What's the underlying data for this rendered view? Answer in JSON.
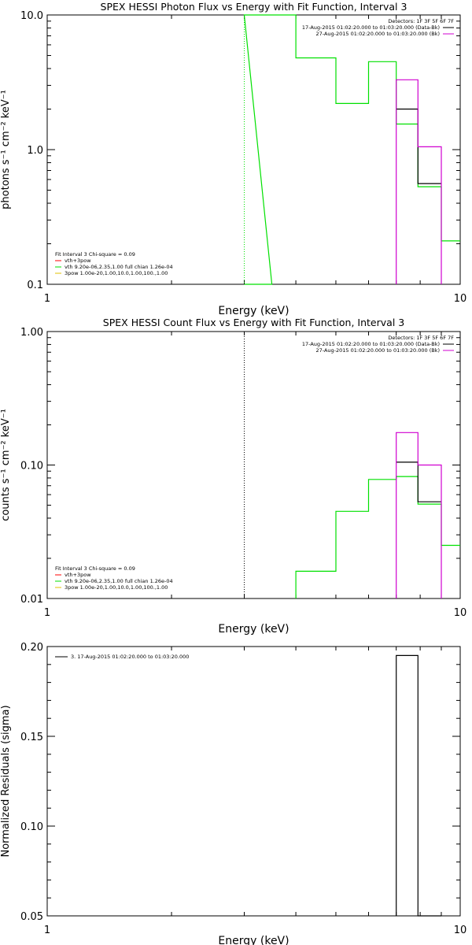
{
  "colors": {
    "green": "#00e000",
    "magenta": "#d000d0",
    "black": "#000000",
    "red": "#ff0000",
    "yellow": "#e0c000"
  },
  "chart_data": [
    {
      "type": "line",
      "title": "SPEX HESSI Photon Flux vs Energy with Fit Function, Interval 3",
      "xlabel": "Energy (keV)",
      "ylabel": "photons s⁻¹ cm⁻² keV⁻¹",
      "xscale": "log",
      "yscale": "log",
      "xlim": [
        1,
        10
      ],
      "ylim": [
        0.1,
        10.0
      ],
      "xticks": [
        1,
        10
      ],
      "xtick_labels": [
        "1",
        "10"
      ],
      "yticks": [
        0.1,
        1.0,
        10.0
      ],
      "ytick_labels": [
        "0.1",
        "1.0",
        "10.0"
      ],
      "detectors": "Detectors: 1F 3F 5F 6F 7F",
      "legend_top": [
        {
          "text": "17-Aug-2015 01:02:20.000 to 01:03:20.000 (Data-Bk)",
          "color": "#000000"
        },
        {
          "text": "27-Aug-2015 01:02:20.000 to 01:03:20.000 (Bk)",
          "color": "#d000d0"
        }
      ],
      "fit_info": [
        {
          "text": "Fit Interval 3   Chi-square = 0.09",
          "color": ""
        },
        {
          "text": "vth+3pow",
          "color": "#ff0000"
        },
        {
          "text": "vth 9.20e-06,2.35,1.00  full chian 1.26e-04",
          "color": "#00e000"
        },
        {
          "text": "3pow 1.00e-20,1.00,10.0,1.00,100.,1.00",
          "color": "#e0c000"
        }
      ],
      "series": [
        {
          "color": "#00e000",
          "steps": [
            [
              3.0,
              3.5,
              0.1
            ],
            [
              3.0,
              3.5,
              10.0
            ],
            [
              3.5,
              4.0,
              10.0
            ],
            [
              4.0,
              5.0,
              4.8
            ],
            [
              5.0,
              6.0,
              2.2
            ],
            [
              6.0,
              7.0,
              4.5
            ],
            [
              7.0,
              7.9,
              1.55
            ],
            [
              7.9,
              9.0,
              0.53
            ],
            [
              9.0,
              10.2,
              0.21
            ]
          ],
          "start_from_bottom": true
        },
        {
          "color": "#000000",
          "steps": [
            [
              7.0,
              7.9,
              2.0
            ],
            [
              7.9,
              9.0,
              0.56
            ]
          ]
        },
        {
          "color": "#d000d0",
          "steps": [
            [
              7.0,
              7.9,
              3.3
            ],
            [
              7.9,
              9.0,
              1.05
            ]
          ],
          "start_from_bottom": true
        }
      ],
      "vline": {
        "x": 3.0,
        "style": "dotted",
        "color": "#00e000"
      }
    },
    {
      "type": "line",
      "title": "SPEX HESSI Count Flux vs Energy with Fit Function, Interval 3",
      "xlabel": "Energy (keV)",
      "ylabel": "counts s⁻¹ cm⁻² keV⁻¹",
      "xscale": "log",
      "yscale": "log",
      "xlim": [
        1,
        10
      ],
      "ylim": [
        0.01,
        1.0
      ],
      "xticks": [
        1,
        10
      ],
      "xtick_labels": [
        "1",
        "10"
      ],
      "yticks": [
        0.01,
        0.1,
        1.0
      ],
      "ytick_labels": [
        "0.01",
        "0.10",
        "1.00"
      ],
      "detectors": "Detectors: 1F 3F 5F 6F 7F",
      "legend_top": [
        {
          "text": "17-Aug-2015 01:02:20.000 to 01:03:20.000 (Data-Bk)",
          "color": "#000000"
        },
        {
          "text": "27-Aug-2015 01:02:20.000 to 01:03:20.000 (Bk)",
          "color": "#d000d0"
        }
      ],
      "fit_info": [
        {
          "text": "Fit Interval 3   Chi-square = 0.09",
          "color": ""
        },
        {
          "text": "vth+3pow",
          "color": "#ff0000"
        },
        {
          "text": "vth 9.20e-06,2.35,1.00  full chian 1.26e-04",
          "color": "#00e000"
        },
        {
          "text": "3pow 1.00e-20,1.00,10.0,1.00,100.,1.00",
          "color": "#e0c000"
        }
      ],
      "series": [
        {
          "color": "#00e000",
          "steps": [
            [
              4.0,
              5.0,
              0.016
            ],
            [
              5.0,
              6.0,
              0.045
            ],
            [
              6.0,
              7.0,
              0.078
            ],
            [
              7.0,
              7.9,
              0.082
            ],
            [
              7.9,
              9.0,
              0.051
            ],
            [
              9.0,
              10.2,
              0.025
            ]
          ],
          "start_from_bottom": true
        },
        {
          "color": "#000000",
          "steps": [
            [
              7.0,
              7.9,
              0.105
            ],
            [
              7.9,
              9.0,
              0.053
            ]
          ]
        },
        {
          "color": "#d000d0",
          "steps": [
            [
              7.0,
              7.9,
              0.175
            ],
            [
              7.9,
              9.0,
              0.1
            ]
          ],
          "start_from_bottom": true
        }
      ],
      "vline": {
        "x": 3.0,
        "style": "dotted",
        "color": "#000000"
      }
    },
    {
      "type": "line",
      "title": "",
      "xlabel": "Energy (keV)",
      "ylabel": "Normalized Residuals (sigma)",
      "xscale": "log",
      "yscale": "linear",
      "xlim": [
        1,
        10
      ],
      "ylim": [
        0.05,
        0.2
      ],
      "xticks": [
        1,
        10
      ],
      "xtick_labels": [
        "1",
        "10"
      ],
      "yticks": [
        0.05,
        0.1,
        0.15,
        0.2
      ],
      "ytick_labels": [
        "0.05",
        "0.10",
        "0.15",
        "0.20"
      ],
      "legend_top": [
        {
          "text": "3. 17-Aug-2015 01:02:20.000 to 01:03:20.000",
          "color": "#000000"
        }
      ],
      "series": [
        {
          "color": "#000000",
          "steps": [
            [
              7.0,
              7.9,
              0.195
            ],
            [
              7.9,
              9.0,
              0.05
            ]
          ],
          "start_from_bottom": true
        }
      ]
    }
  ]
}
